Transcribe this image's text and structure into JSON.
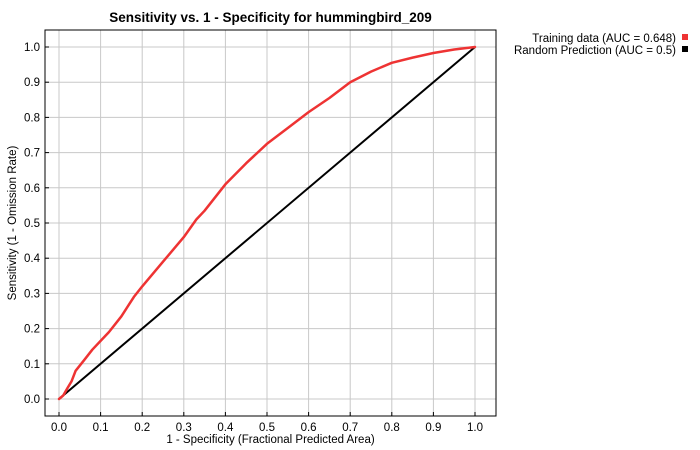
{
  "chart_data": {
    "type": "line",
    "title": "Sensitivity vs. 1 - Specificity for hummingbird_209",
    "xlabel": "1 - Specificity  (Fractional Predicted Area)",
    "ylabel": "Sensitivity  (1 - Omission Rate)",
    "xlim": [
      0,
      1
    ],
    "ylim": [
      0,
      1
    ],
    "x_ticks": [
      "0.0",
      "0.1",
      "0.2",
      "0.3",
      "0.4",
      "0.5",
      "0.6",
      "0.7",
      "0.8",
      "0.9",
      "1.0"
    ],
    "y_ticks": [
      "0.0",
      "0.1",
      "0.2",
      "0.3",
      "0.4",
      "0.5",
      "0.6",
      "0.7",
      "0.8",
      "0.9",
      "1.0"
    ],
    "grid": true,
    "legend_position": "right-outside-top",
    "series": [
      {
        "name": "Training data (AUC = 0.648)",
        "color": "#ee3333",
        "points": [
          [
            0.0,
            0.0
          ],
          [
            0.01,
            0.01
          ],
          [
            0.02,
            0.03
          ],
          [
            0.03,
            0.05
          ],
          [
            0.04,
            0.08
          ],
          [
            0.06,
            0.11
          ],
          [
            0.08,
            0.14
          ],
          [
            0.1,
            0.165
          ],
          [
            0.12,
            0.19
          ],
          [
            0.15,
            0.235
          ],
          [
            0.18,
            0.29
          ],
          [
            0.2,
            0.32
          ],
          [
            0.25,
            0.39
          ],
          [
            0.3,
            0.46
          ],
          [
            0.33,
            0.51
          ],
          [
            0.35,
            0.535
          ],
          [
            0.4,
            0.61
          ],
          [
            0.45,
            0.67
          ],
          [
            0.5,
            0.725
          ],
          [
            0.55,
            0.77
          ],
          [
            0.6,
            0.815
          ],
          [
            0.65,
            0.855
          ],
          [
            0.7,
            0.9
          ],
          [
            0.75,
            0.93
          ],
          [
            0.8,
            0.955
          ],
          [
            0.85,
            0.97
          ],
          [
            0.9,
            0.983
          ],
          [
            0.95,
            0.993
          ],
          [
            1.0,
            1.0
          ]
        ]
      },
      {
        "name": "Random Prediction (AUC = 0.5)",
        "color": "#000000",
        "points": [
          [
            0.0,
            0.0
          ],
          [
            1.0,
            1.0
          ]
        ]
      }
    ]
  }
}
